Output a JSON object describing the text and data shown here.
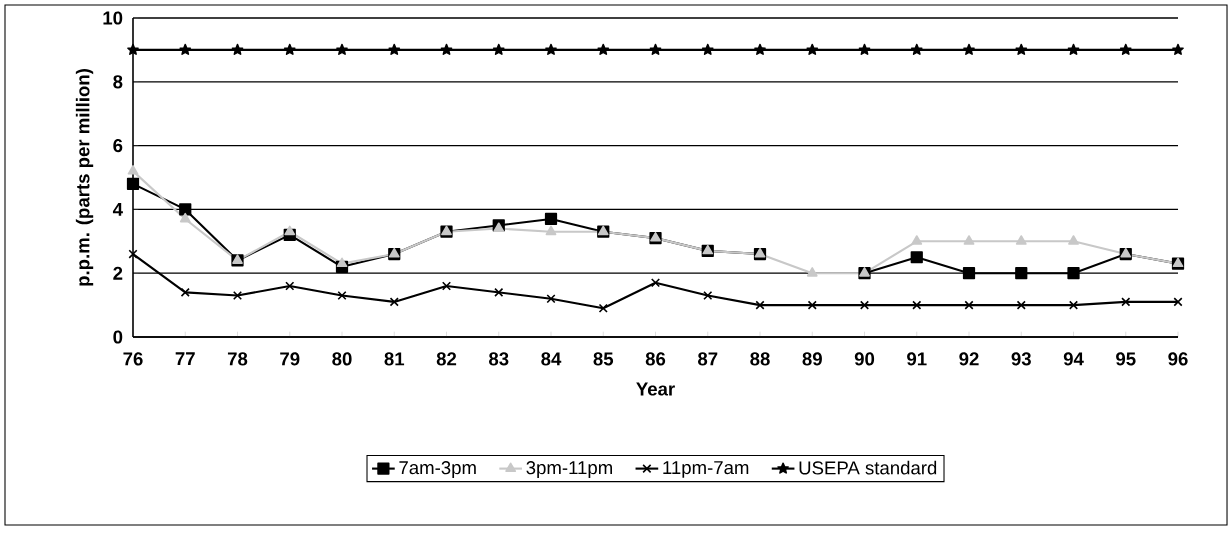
{
  "chart_data": {
    "type": "line",
    "xlabel": "Year",
    "ylabel": "p.p.m. (parts per million)",
    "categories": [
      "76",
      "77",
      "78",
      "79",
      "80",
      "81",
      "82",
      "83",
      "84",
      "85",
      "86",
      "87",
      "88",
      "89",
      "90",
      "91",
      "92",
      "93",
      "94",
      "95",
      "96"
    ],
    "series": [
      {
        "name": "7am-3pm",
        "color": "#000000",
        "marker": "square",
        "values": [
          4.8,
          4.0,
          2.4,
          3.2,
          2.2,
          2.6,
          3.3,
          3.5,
          3.7,
          3.3,
          3.1,
          2.7,
          2.6,
          null,
          2.0,
          2.5,
          2.0,
          2.0,
          2.0,
          2.6,
          2.3
        ]
      },
      {
        "name": "3pm-11pm",
        "color": "#c8c8c8",
        "marker": "triangle",
        "values": [
          5.2,
          3.7,
          2.4,
          3.3,
          2.3,
          2.6,
          3.3,
          3.4,
          3.3,
          3.3,
          3.1,
          2.7,
          2.6,
          2.0,
          2.0,
          3.0,
          3.0,
          3.0,
          3.0,
          2.6,
          2.3
        ]
      },
      {
        "name": "11pm-7am",
        "color": "#000000",
        "marker": "cross",
        "values": [
          2.6,
          1.4,
          1.3,
          1.6,
          1.3,
          1.1,
          1.6,
          1.4,
          1.2,
          0.9,
          1.7,
          1.3,
          1.0,
          1.0,
          1.0,
          1.0,
          1.0,
          1.0,
          1.0,
          1.1,
          1.1
        ]
      },
      {
        "name": "USEPA standard",
        "color": "#000000",
        "marker": "star",
        "values": [
          9,
          9,
          9,
          9,
          9,
          9,
          9,
          9,
          9,
          9,
          9,
          9,
          9,
          9,
          9,
          9,
          9,
          9,
          9,
          9,
          9
        ]
      }
    ],
    "ylim": [
      0,
      10
    ],
    "yticks": [
      0,
      2,
      4,
      6,
      8,
      10
    ],
    "grid": "y",
    "legend": "bottom",
    "line_style": "solid"
  }
}
